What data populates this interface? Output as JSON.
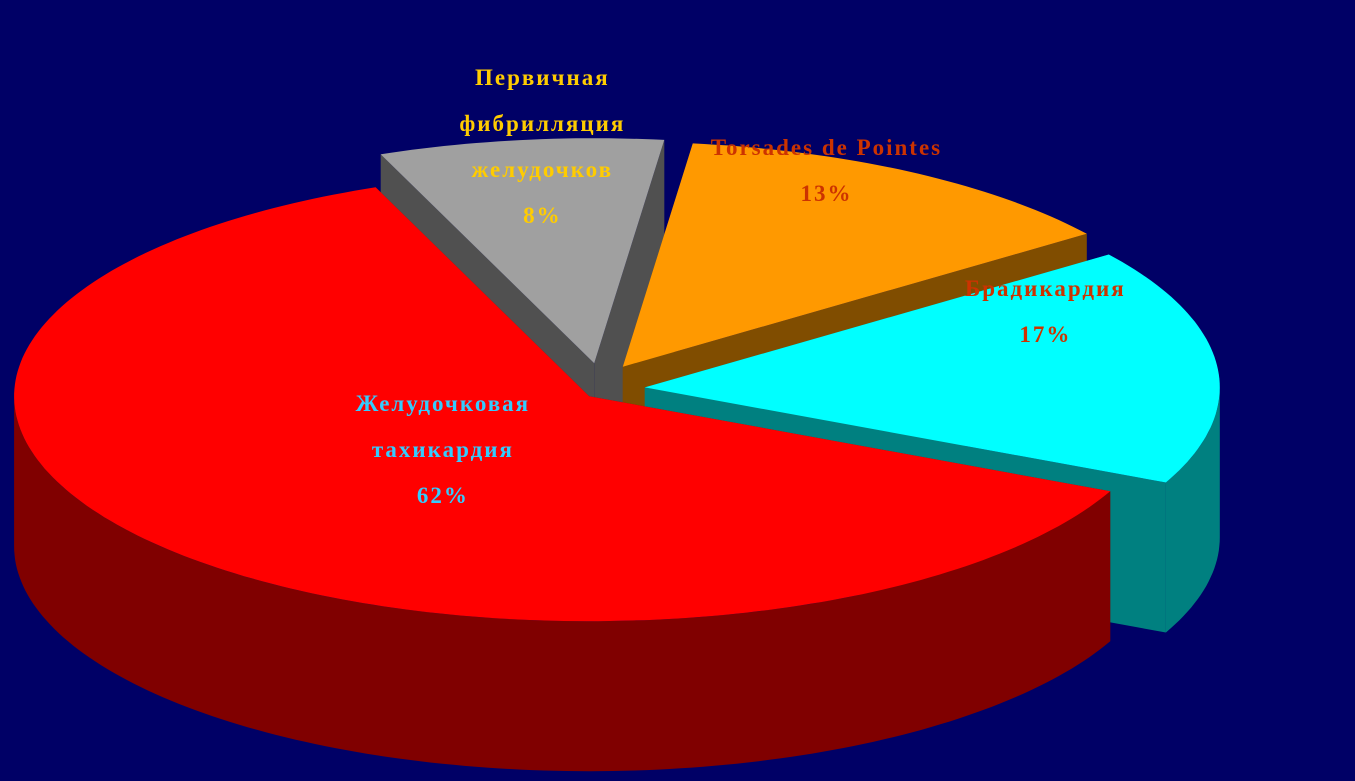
{
  "chart_data": {
    "type": "pie",
    "categories": [
      "Желудочковая тахикардия",
      "Первичная фибрилляция желудочков",
      "Torsades de Pointes",
      "Брадикардия"
    ],
    "values": [
      62,
      8,
      13,
      17
    ],
    "value_labels": [
      "62%",
      "8%",
      "13%",
      "17%"
    ],
    "colors": [
      "#ff0000",
      "#a0a0a0",
      "#ff9900",
      "#00ffff"
    ],
    "label_colors": [
      "#33ccff",
      "#ffcc00",
      "#cc3300",
      "#cc3300"
    ],
    "background": "#000066"
  }
}
